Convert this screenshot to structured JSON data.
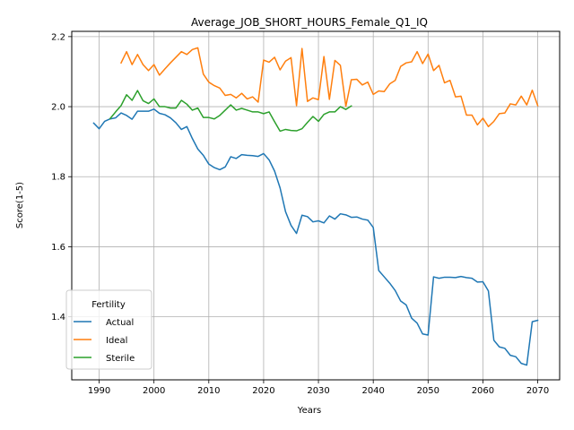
{
  "chart_data": {
    "type": "line",
    "title": "Average_JOB_SHORT_HOURS_Female_Q1_IQ",
    "xlabel": "Years",
    "ylabel": "Score(1-5)",
    "xlim": [
      1985,
      2074
    ],
    "ylim": [
      1.22,
      2.215
    ],
    "xticks": [
      1990,
      2000,
      2010,
      2020,
      2030,
      2040,
      2050,
      2060,
      2070
    ],
    "yticks": [
      1.4,
      1.6,
      1.8,
      2.0,
      2.2
    ],
    "ytick_labels": [
      "1.4",
      "1.6",
      "1.8",
      "2.0",
      "2.2"
    ],
    "grid": true,
    "legend": {
      "title": "Fertility",
      "placement": "lower-left"
    },
    "series": [
      {
        "name": "Actual",
        "color": "#1f77b4",
        "x": [
          1989,
          1990,
          1991,
          1992,
          1993,
          1994,
          1995,
          1996,
          1997,
          1998,
          1999,
          2000,
          2001,
          2002,
          2003,
          2004,
          2005,
          2006,
          2007,
          2008,
          2009,
          2010,
          2011,
          2012,
          2013,
          2014,
          2015,
          2016,
          2017,
          2018,
          2019,
          2020,
          2021,
          2022,
          2023,
          2024,
          2025,
          2026,
          2027,
          2028,
          2029,
          2030,
          2031,
          2032,
          2033,
          2034,
          2035,
          2036,
          2037,
          2038,
          2039,
          2040,
          2041,
          2042,
          2043,
          2044,
          2045,
          2046,
          2047,
          2048,
          2049,
          2050,
          2051,
          2052,
          2053,
          2054,
          2055,
          2056,
          2057,
          2058,
          2059,
          2060,
          2061,
          2062,
          2063,
          2064,
          2065,
          2066,
          2067,
          2068,
          2069,
          2070
        ],
        "y": [
          1.953,
          1.937,
          1.958,
          1.965,
          1.968,
          1.982,
          1.975,
          1.964,
          1.987,
          1.987,
          1.987,
          1.993,
          1.981,
          1.977,
          1.968,
          1.954,
          1.935,
          1.943,
          1.909,
          1.879,
          1.861,
          1.836,
          1.826,
          1.82,
          1.828,
          1.857,
          1.852,
          1.863,
          1.861,
          1.86,
          1.858,
          1.866,
          1.848,
          1.816,
          1.768,
          1.7,
          1.661,
          1.638,
          1.69,
          1.686,
          1.671,
          1.674,
          1.668,
          1.688,
          1.679,
          1.694,
          1.691,
          1.684,
          1.685,
          1.679,
          1.676,
          1.655,
          1.532,
          1.514,
          1.496,
          1.475,
          1.445,
          1.434,
          1.396,
          1.382,
          1.351,
          1.348,
          1.514,
          1.51,
          1.513,
          1.513,
          1.512,
          1.515,
          1.512,
          1.51,
          1.499,
          1.5,
          1.474,
          1.333,
          1.314,
          1.31,
          1.29,
          1.286,
          1.267,
          1.262,
          1.386,
          1.39
        ]
      },
      {
        "name": "Ideal",
        "color": "#ff7f0e",
        "x": [
          1994,
          1995,
          1996,
          1997,
          1998,
          1999,
          2000,
          2001,
          2002,
          2003,
          2004,
          2005,
          2006,
          2007,
          2008,
          2009,
          2010,
          2011,
          2012,
          2013,
          2014,
          2015,
          2016,
          2017,
          2018,
          2019,
          2020,
          2021,
          2022,
          2023,
          2024,
          2025,
          2026,
          2027,
          2028,
          2029,
          2030,
          2031,
          2032,
          2033,
          2034,
          2035,
          2036,
          2037,
          2038,
          2039,
          2040,
          2041,
          2042,
          2043,
          2044,
          2045,
          2046,
          2047,
          2048,
          2049,
          2050,
          2051,
          2052,
          2053,
          2054,
          2055,
          2056,
          2057,
          2058,
          2059,
          2060,
          2061,
          2062,
          2063,
          2064,
          2065,
          2066,
          2067,
          2068,
          2069,
          2070
        ],
        "y": [
          2.125,
          2.157,
          2.12,
          2.149,
          2.12,
          2.103,
          2.12,
          2.09,
          2.108,
          2.125,
          2.141,
          2.157,
          2.149,
          2.163,
          2.168,
          2.093,
          2.07,
          2.06,
          2.053,
          2.032,
          2.035,
          2.025,
          2.038,
          2.022,
          2.028,
          2.013,
          2.133,
          2.127,
          2.141,
          2.105,
          2.13,
          2.14,
          2.003,
          2.166,
          2.015,
          2.025,
          2.02,
          2.143,
          2.021,
          2.132,
          2.118,
          2.001,
          2.077,
          2.078,
          2.062,
          2.07,
          2.035,
          2.045,
          2.043,
          2.065,
          2.075,
          2.115,
          2.125,
          2.128,
          2.157,
          2.123,
          2.15,
          2.103,
          2.118,
          2.068,
          2.075,
          2.028,
          2.03,
          1.976,
          1.976,
          1.948,
          1.967,
          1.943,
          1.958,
          1.98,
          1.982,
          2.008,
          2.005,
          2.03,
          2.005,
          2.047,
          2.003
        ]
      },
      {
        "name": "Sterile",
        "color": "#2ca02c",
        "x": [
          1992,
          1993,
          1994,
          1995,
          1996,
          1997,
          1998,
          1999,
          2000,
          2001,
          2002,
          2003,
          2004,
          2005,
          2006,
          2007,
          2008,
          2009,
          2010,
          2011,
          2012,
          2013,
          2014,
          2015,
          2016,
          2017,
          2018,
          2019,
          2020,
          2021,
          2022,
          2023,
          2024,
          2025,
          2026,
          2027,
          2028,
          2029,
          2030,
          2031,
          2032,
          2033,
          2034,
          2035,
          2036
        ],
        "y": [
          1.966,
          1.985,
          2.003,
          2.034,
          2.018,
          2.046,
          2.017,
          2.009,
          2.022,
          2.0,
          2.0,
          1.996,
          1.996,
          2.018,
          2.007,
          1.99,
          1.996,
          1.969,
          1.969,
          1.965,
          1.975,
          1.99,
          2.005,
          1.99,
          1.995,
          1.99,
          1.985,
          1.985,
          1.98,
          1.985,
          1.957,
          1.93,
          1.935,
          1.932,
          1.931,
          1.937,
          1.955,
          1.972,
          1.958,
          1.978,
          1.985,
          1.985,
          2.0,
          1.992,
          2.002
        ]
      }
    ]
  }
}
